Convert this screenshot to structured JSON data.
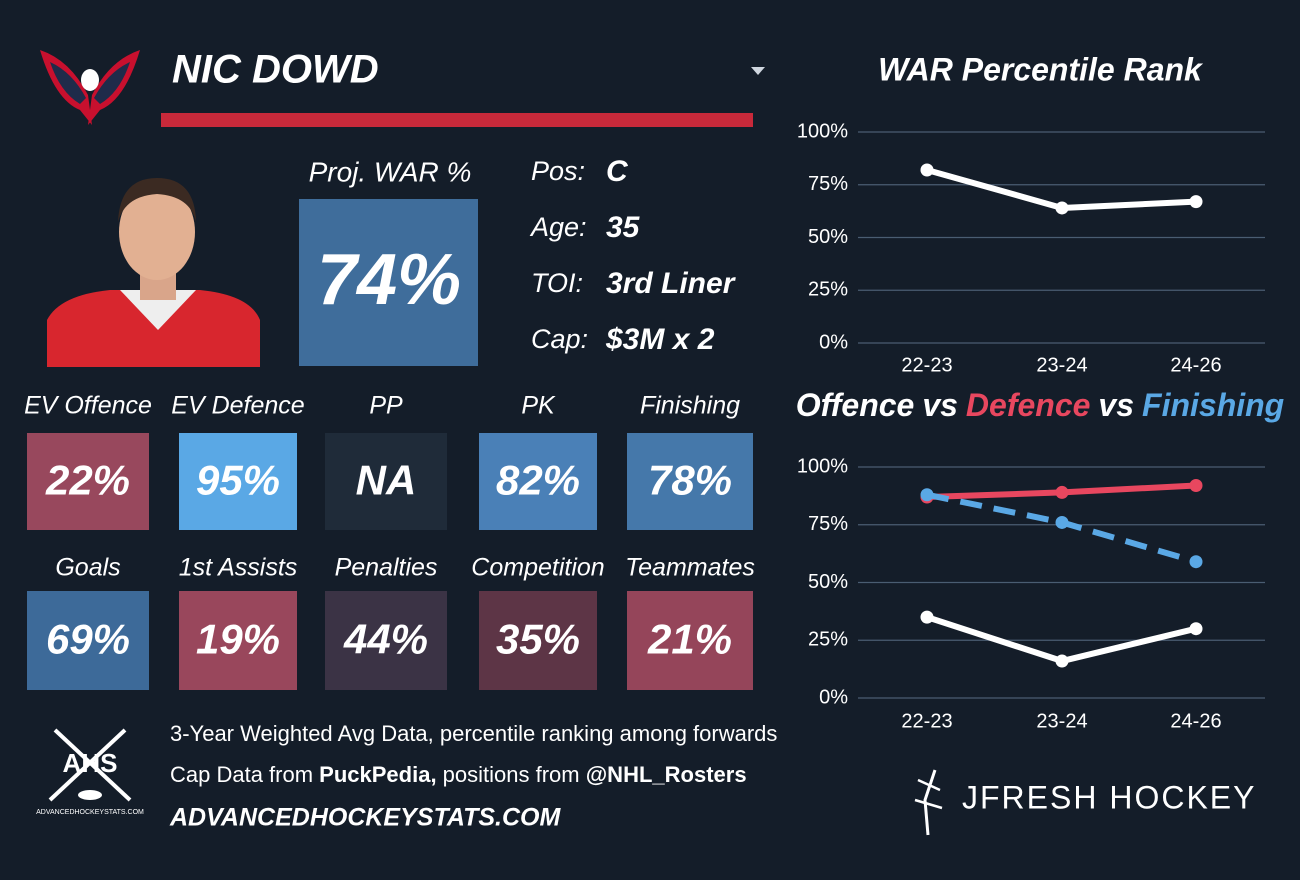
{
  "header": {
    "name": "NIC DOWD"
  },
  "projection": {
    "label": "Proj. WAR %",
    "value": "74%",
    "color": "#3f6d9b"
  },
  "info": [
    {
      "label": "Pos:",
      "value": "C"
    },
    {
      "label": "Age:",
      "value": "35"
    },
    {
      "label": "TOI:",
      "value": "3rd Liner"
    },
    {
      "label": "Cap:",
      "value": "$3M x 2"
    }
  ],
  "tiles": [
    [
      {
        "label": "EV Offence",
        "value": "22%",
        "color": "#98485d"
      },
      {
        "label": "EV Defence",
        "value": "95%",
        "color": "#5aa8e5"
      },
      {
        "label": "PP",
        "value": "NA",
        "color": "#1f2b39"
      },
      {
        "label": "PK",
        "value": "82%",
        "color": "#4a80b7"
      },
      {
        "label": "Finishing",
        "value": "78%",
        "color": "#4578aa"
      }
    ],
    [
      {
        "label": "Goals",
        "value": "69%",
        "color": "#3d6a99"
      },
      {
        "label": "1st Assists",
        "value": "19%",
        "color": "#99475c"
      },
      {
        "label": "Penalties",
        "value": "44%",
        "color": "#3b3345"
      },
      {
        "label": "Competition",
        "value": "35%",
        "color": "#5d3546"
      },
      {
        "label": "Teammates",
        "value": "21%",
        "color": "#95455a"
      }
    ]
  ],
  "footer": {
    "note": "3-Year Weighted Avg Data, percentile ranking among forwards",
    "credits": [
      {
        "text": "Cap Data from ",
        "bold": false
      },
      {
        "text": "PuckPedia,",
        "bold": true
      },
      {
        "text": " positions from ",
        "bold": false
      },
      {
        "text": "@NHL_Rosters",
        "bold": true
      }
    ],
    "site": "ADVANCEDHOCKEYSTATS.COM"
  },
  "logos": {
    "ahs": "AHS",
    "ahs_sub": "ADVANCEDHOCKEYSTATS.COM",
    "brand": "JFRESH HOCKEY"
  },
  "chart_data": [
    {
      "type": "line",
      "title": "WAR Percentile Rank",
      "categories": [
        "22-23",
        "23-24",
        "24-26"
      ],
      "series": [
        {
          "color": "#ffffff",
          "values": [
            82,
            64,
            67
          ]
        }
      ],
      "ylim": [
        0,
        100
      ],
      "yticks": [
        {
          "value": 0,
          "label": "0%"
        },
        {
          "value": 25,
          "label": "25%"
        },
        {
          "value": 50,
          "label": "50%"
        },
        {
          "value": 75,
          "label": "75%"
        },
        {
          "value": 100,
          "label": "100%"
        }
      ],
      "grid": true
    },
    {
      "type": "line",
      "title_joiner": "vs",
      "categories": [
        "22-23",
        "23-24",
        "24-26"
      ],
      "series": [
        {
          "name": "Offence",
          "color": "#ffffff",
          "values": [
            35,
            16,
            30
          ]
        },
        {
          "name": "Defence",
          "color": "#e8475f",
          "values": [
            87,
            89,
            92
          ]
        },
        {
          "name": "Finishing",
          "color": "#5aa8e5",
          "dashed": true,
          "values": [
            88,
            76,
            59
          ]
        }
      ],
      "ylim": [
        0,
        100
      ],
      "yticks": [
        {
          "value": 0,
          "label": "0%"
        },
        {
          "value": 25,
          "label": "25%"
        },
        {
          "value": 50,
          "label": "50%"
        },
        {
          "value": 75,
          "label": "75%"
        },
        {
          "value": 100,
          "label": "100%"
        }
      ],
      "grid": true
    }
  ]
}
